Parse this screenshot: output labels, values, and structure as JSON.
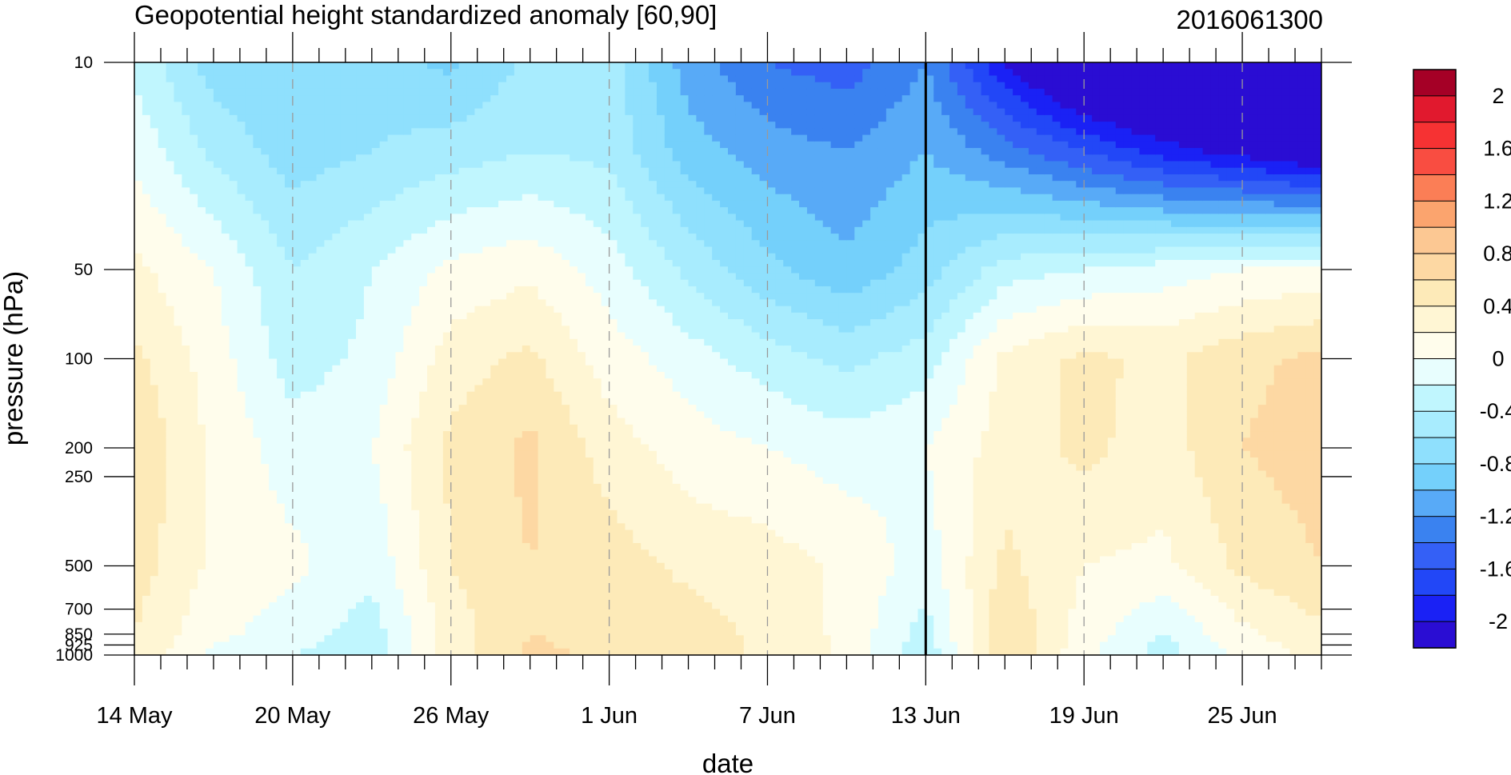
{
  "chart_data": {
    "type": "heatmap",
    "title": "Geopotential height standardized anomaly [60,90]",
    "subtitle_right": "2016061300",
    "xlabel": "date",
    "ylabel": "pressure (hPa)",
    "x_ticks": [
      {
        "label": "14 May",
        "day": 0
      },
      {
        "label": "20 May",
        "day": 6
      },
      {
        "label": "26 May",
        "day": 12
      },
      {
        "label": "1 Jun",
        "day": 18
      },
      {
        "label": "7 Jun",
        "day": 24
      },
      {
        "label": "13 Jun",
        "day": 30
      },
      {
        "label": "19 Jun",
        "day": 36
      },
      {
        "label": "25 Jun",
        "day": 42
      }
    ],
    "y_ticks": [
      {
        "label": "10",
        "p": 10
      },
      {
        "label": "50",
        "p": 50
      },
      {
        "label": "100",
        "p": 100
      },
      {
        "label": "200",
        "p": 200
      },
      {
        "label": "250",
        "p": 250
      },
      {
        "label": "500",
        "p": 500
      },
      {
        "label": "700",
        "p": 700
      },
      {
        "label": "850",
        "p": 850
      },
      {
        "label": "925",
        "p": 925
      },
      {
        "label": "1000",
        "p": 1000
      }
    ],
    "xlim": [
      0,
      45
    ],
    "ylim": [
      1000,
      10
    ],
    "y_scale": "log",
    "forecast_start_day": 30,
    "colorbar": {
      "levels": [
        -2.2,
        -2.0,
        -1.8,
        -1.6,
        -1.4,
        -1.2,
        -1.0,
        -0.8,
        -0.6,
        -0.4,
        -0.2,
        0,
        0.2,
        0.4,
        0.6,
        0.8,
        1.0,
        1.2,
        1.4,
        1.6,
        1.8,
        2.0
      ],
      "colors": [
        "#2a0dd3",
        "#1a21f5",
        "#2247f7",
        "#3460f6",
        "#3a82f0",
        "#58aaf7",
        "#74d0fb",
        "#8fe0fd",
        "#a8ecfe",
        "#c0f6fe",
        "#e8fefe",
        "#fffdec",
        "#fff6d4",
        "#fdeab8",
        "#fdd8a3",
        "#fcc893",
        "#fba46e",
        "#fb7e56",
        "#f94d41",
        "#f63233",
        "#e1192e",
        "#a50026"
      ],
      "tick_labels": [
        "2",
        "1.6",
        "1.2",
        "0.8",
        "0.4",
        "0",
        "-0.4",
        "-0.8",
        "-1.2",
        "-1.6",
        "-2"
      ]
    },
    "grid": {
      "days": [
        0,
        3,
        6,
        9,
        12,
        15,
        18,
        21,
        24,
        27,
        30,
        33,
        36,
        39,
        42,
        45
      ],
      "pressures": [
        10,
        20,
        50,
        100,
        200,
        500,
        850,
        1000
      ],
      "values": [
        [
          -0.25,
          -0.7,
          -0.8,
          -0.7,
          -0.85,
          -0.55,
          -0.5,
          -1.1,
          -1.4,
          -1.5,
          -1.2,
          -2.0,
          -2.6,
          -2.8,
          -2.9,
          -3.0
        ],
        [
          -0.05,
          -0.45,
          -0.7,
          -0.6,
          -0.5,
          -0.4,
          -0.45,
          -0.9,
          -1.1,
          -1.2,
          -1.0,
          -1.3,
          -1.6,
          -1.9,
          -2.1,
          -2.3
        ],
        [
          0.25,
          0.0,
          -0.4,
          -0.2,
          0.05,
          0.15,
          -0.1,
          -0.45,
          -0.75,
          -0.95,
          -0.7,
          -0.3,
          -0.2,
          -0.1,
          0.0,
          0.05
        ],
        [
          0.45,
          0.1,
          -0.3,
          -0.15,
          0.3,
          0.45,
          0.1,
          -0.1,
          -0.3,
          -0.45,
          -0.3,
          0.25,
          0.45,
          0.35,
          0.55,
          0.65
        ],
        [
          0.6,
          0.15,
          -0.1,
          0.0,
          0.45,
          0.65,
          0.3,
          0.1,
          0.0,
          -0.1,
          0.0,
          0.3,
          0.45,
          0.3,
          0.6,
          0.7
        ],
        [
          0.5,
          0.15,
          0.05,
          -0.15,
          0.4,
          0.6,
          0.5,
          0.35,
          0.3,
          0.15,
          -0.1,
          0.45,
          0.2,
          0.15,
          0.45,
          0.6
        ],
        [
          0.4,
          0.05,
          -0.1,
          -0.3,
          0.3,
          0.6,
          0.55,
          0.5,
          0.35,
          0.15,
          -0.3,
          0.6,
          0.1,
          -0.2,
          0.15,
          0.35
        ],
        [
          0.35,
          -0.05,
          -0.2,
          -0.35,
          0.3,
          0.65,
          0.55,
          0.55,
          0.35,
          0.15,
          -0.35,
          0.6,
          0.05,
          -0.3,
          0.05,
          0.3
        ]
      ]
    }
  }
}
